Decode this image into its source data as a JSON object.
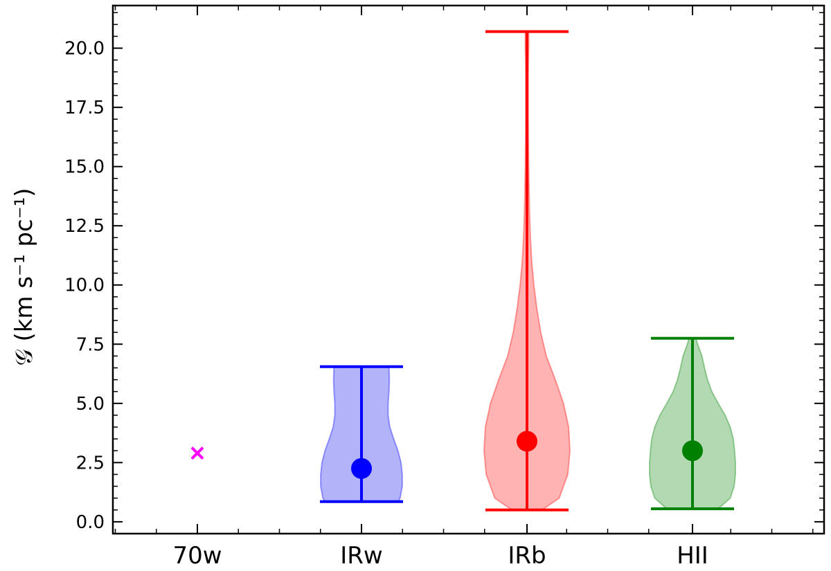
{
  "chart_data": {
    "type": "violin",
    "title": "",
    "xlabel": "",
    "ylabel": "𝒢 (km s⁻¹ pc⁻¹)",
    "ylim": [
      -0.5,
      21.8
    ],
    "yticks": [
      "0.0",
      "2.5",
      "5.0",
      "7.5",
      "10.0",
      "12.5",
      "15.0",
      "17.5",
      "20.0"
    ],
    "grid": false,
    "categories": [
      "70w",
      "IRw",
      "IRb",
      "HII"
    ],
    "series": [
      {
        "category": "70w",
        "marker": "x",
        "color": "#ff00ff",
        "value": 2.9
      },
      {
        "category": "IRw",
        "color": "#0000ff",
        "fill": "#b3b3fa",
        "median": 2.25,
        "min": 0.85,
        "max": 6.55,
        "profile": [
          [
            0.85,
            0.85
          ],
          [
            1.0,
            0.9
          ],
          [
            1.5,
            0.95
          ],
          [
            2.0,
            0.95
          ],
          [
            2.5,
            0.92
          ],
          [
            3.0,
            0.85
          ],
          [
            3.5,
            0.75
          ],
          [
            4.0,
            0.66
          ],
          [
            4.5,
            0.62
          ],
          [
            5.0,
            0.62
          ],
          [
            5.5,
            0.64
          ],
          [
            6.0,
            0.65
          ],
          [
            6.55,
            0.64
          ]
        ]
      },
      {
        "category": "IRb",
        "color": "#ff0000",
        "fill": "#ffb3b3",
        "median": 3.4,
        "min": 0.5,
        "max": 20.7,
        "profile": [
          [
            0.5,
            0.35
          ],
          [
            1.0,
            0.75
          ],
          [
            2.0,
            0.95
          ],
          [
            3.0,
            1.0
          ],
          [
            4.0,
            0.97
          ],
          [
            5.0,
            0.85
          ],
          [
            6.0,
            0.66
          ],
          [
            7.0,
            0.45
          ],
          [
            8.0,
            0.32
          ],
          [
            9.0,
            0.23
          ],
          [
            10.0,
            0.16
          ],
          [
            11.0,
            0.11
          ],
          [
            12.0,
            0.08
          ],
          [
            13.0,
            0.06
          ],
          [
            14.0,
            0.05
          ],
          [
            15.0,
            0.04
          ],
          [
            16.0,
            0.035
          ],
          [
            17.0,
            0.03
          ],
          [
            18.0,
            0.03
          ],
          [
            19.0,
            0.03
          ],
          [
            20.0,
            0.04
          ],
          [
            20.7,
            0.04
          ]
        ]
      },
      {
        "category": "HII",
        "color": "#008000",
        "fill": "#b3d9b3",
        "median": 3.0,
        "min": 0.55,
        "max": 7.75,
        "profile": [
          [
            0.55,
            0.6
          ],
          [
            1.0,
            0.88
          ],
          [
            1.5,
            0.97
          ],
          [
            2.0,
            1.0
          ],
          [
            2.5,
            1.0
          ],
          [
            3.0,
            0.98
          ],
          [
            3.5,
            0.95
          ],
          [
            4.0,
            0.88
          ],
          [
            4.5,
            0.76
          ],
          [
            5.0,
            0.6
          ],
          [
            5.5,
            0.45
          ],
          [
            6.0,
            0.35
          ],
          [
            6.5,
            0.28
          ],
          [
            7.0,
            0.22
          ],
          [
            7.5,
            0.12
          ],
          [
            7.75,
            0.08
          ]
        ]
      }
    ]
  }
}
